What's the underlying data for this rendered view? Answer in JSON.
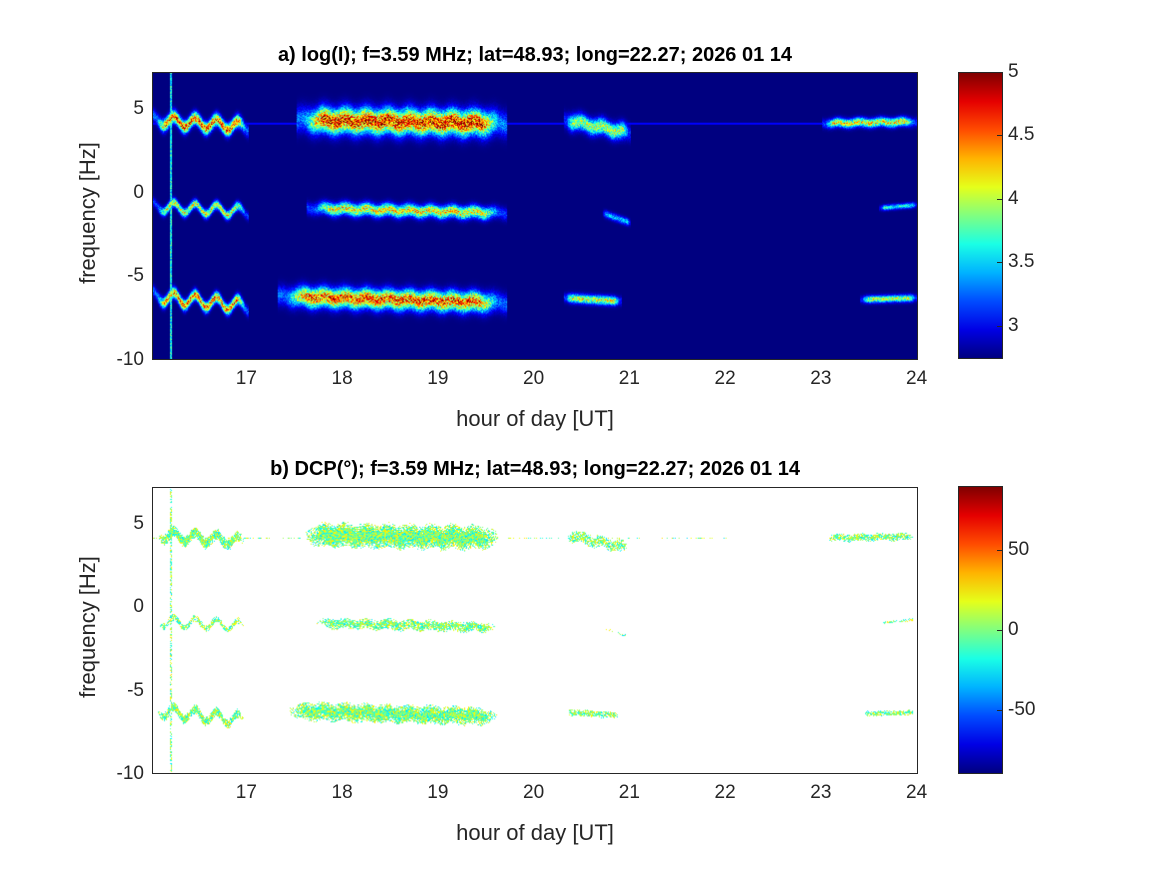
{
  "chart_data": [
    {
      "type": "heatmap",
      "title": "a) log(I); f=3.59 MHz;  lat=48.93; long=22.27; 2026 01 14",
      "xlabel": "hour of day [UT]",
      "ylabel": "frequency [Hz]",
      "xlim": [
        16.0,
        24.0
      ],
      "ylim": [
        -10,
        7.2
      ],
      "xticks": [
        17,
        18,
        19,
        20,
        21,
        22,
        23,
        24
      ],
      "yticks": [
        5,
        0,
        -5,
        -10
      ],
      "colormap": "jet",
      "clim": [
        2.74,
        5
      ],
      "colorbar_ticks": [
        5,
        4.5,
        4,
        3.5,
        3
      ],
      "background_value": 2.74,
      "features": [
        {
          "t": [
            16.0,
            17.0
          ],
          "f": [
            4.4,
            4.0
          ],
          "width": 0.35,
          "wave": 0.3,
          "peak": 4.8
        },
        {
          "t": [
            17.5,
            19.7
          ],
          "f": [
            4.4,
            4.2
          ],
          "width": 0.7,
          "wave": 0.1,
          "peak": 5.0
        },
        {
          "t": [
            20.3,
            21.0
          ],
          "f": [
            4.4,
            3.6
          ],
          "width": 0.45,
          "wave": 0.1,
          "peak": 4.2
        },
        {
          "t": [
            23.0,
            24.0
          ],
          "f": [
            4.2,
            4.3
          ],
          "width": 0.25,
          "wave": 0.05,
          "peak": 4.4
        },
        {
          "t": [
            16.0,
            17.0
          ],
          "f": [
            -0.8,
            -1.1
          ],
          "width": 0.25,
          "wave": 0.3,
          "peak": 4.3
        },
        {
          "t": [
            17.6,
            19.7
          ],
          "f": [
            -0.9,
            -1.2
          ],
          "width": 0.35,
          "wave": 0.08,
          "peak": 4.4
        },
        {
          "t": [
            20.7,
            21.0
          ],
          "f": [
            -1.2,
            -1.8
          ],
          "width": 0.2,
          "wave": 0.0,
          "peak": 3.6
        },
        {
          "t": [
            23.6,
            24.0
          ],
          "f": [
            -0.9,
            -0.7
          ],
          "width": 0.15,
          "wave": 0.0,
          "peak": 3.8
        },
        {
          "t": [
            16.0,
            17.0
          ],
          "f": [
            -6.2,
            -6.8
          ],
          "width": 0.3,
          "wave": 0.35,
          "peak": 4.7
        },
        {
          "t": [
            17.3,
            19.7
          ],
          "f": [
            -6.2,
            -6.6
          ],
          "width": 0.55,
          "wave": 0.08,
          "peak": 4.8
        },
        {
          "t": [
            20.3,
            20.9
          ],
          "f": [
            -6.3,
            -6.5
          ],
          "width": 0.25,
          "wave": 0.0,
          "peak": 4.3
        },
        {
          "t": [
            23.4,
            24.0
          ],
          "f": [
            -6.4,
            -6.3
          ],
          "width": 0.2,
          "wave": 0.0,
          "peak": 4.2
        }
      ],
      "vertical_line_hour": 16.18,
      "horizontal_line_hz": 4.2
    },
    {
      "type": "heatmap",
      "title": "b) DCP(°); f=3.59 MHz;  lat=48.93; long=22.27; 2026 01 14",
      "title_parts": [
        "b) DCP(",
        "o",
        "); f=3.59 MHz;  lat=48.93; long=22.27; 2026 01 14"
      ],
      "xlabel": "hour of day [UT]",
      "ylabel": "frequency [Hz]",
      "xlim": [
        16.0,
        24.0
      ],
      "ylim": [
        -10,
        7.2
      ],
      "xticks": [
        17,
        18,
        19,
        20,
        21,
        22,
        23,
        24
      ],
      "yticks": [
        5,
        0,
        -5,
        -10
      ],
      "colormap": "jet",
      "clim": [
        -90,
        90
      ],
      "colorbar_ticks": [
        50,
        0,
        -50
      ],
      "masked_color": "#ffffff",
      "typical_dcp": 0
    }
  ]
}
